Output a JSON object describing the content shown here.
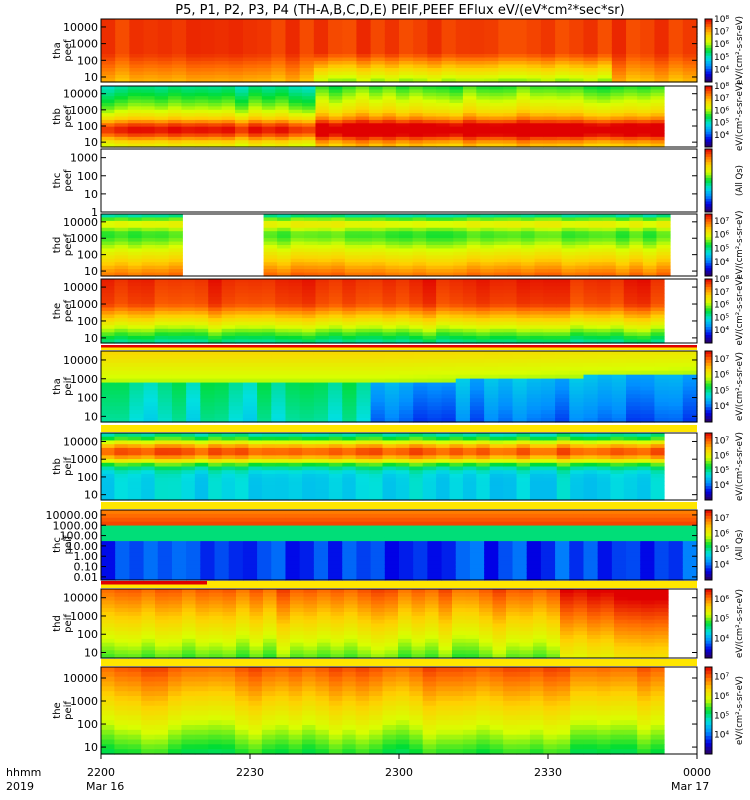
{
  "chart_data": {
    "type": "heatmap",
    "title": "P5, P1, P2, P3, P4 (TH-A,B,C,D,E) PEIF,PEEF EFlux eV/(eV*cm²*sec*sr)",
    "x_axis": {
      "row_label_1": "hhmm",
      "row_label_2": "2019",
      "ticks": [
        "2200",
        "2230",
        "2300",
        "2330",
        "0000"
      ],
      "date_labels": [
        "Mar 16",
        "Mar 17"
      ],
      "range": [
        "2019-03-16 22:00",
        "2019-03-17 00:00"
      ]
    },
    "colormap": [
      "#2b005e",
      "#0000e6",
      "#0090ff",
      "#00e0e0",
      "#00dd33",
      "#d8ff00",
      "#ffd000",
      "#ff6a00",
      "#e00000"
    ],
    "panels": [
      {
        "ylabel": [
          "tha",
          "peef"
        ],
        "yticks": [
          "10000",
          "1000",
          "100",
          "10"
        ],
        "ylim": [
          5,
          30000
        ],
        "log": true,
        "color_ticks": [
          "10⁴",
          "10⁵",
          "10⁶",
          "10⁷",
          "10⁸"
        ],
        "clim_exp": [
          3,
          8
        ],
        "unit": "eV/(cm²-s-sr-eV)"
      },
      {
        "ylabel": [
          "thb",
          "peef"
        ],
        "yticks": [
          "10000",
          "1000",
          "100",
          "10"
        ],
        "ylim": [
          5,
          30000
        ],
        "log": true,
        "color_ticks": [
          "10⁴",
          "10⁵",
          "10⁶",
          "10⁷",
          "10⁸"
        ],
        "clim_exp": [
          3,
          8
        ],
        "unit": "eV/(cm²-s-sr-eV)"
      },
      {
        "ylabel": [
          "thc",
          "peef"
        ],
        "yticks": [
          "1000",
          "100",
          "10",
          "1"
        ],
        "ylim": [
          1,
          3000
        ],
        "log": true,
        "color_ticks": [],
        "clim_exp": [
          3,
          8
        ],
        "unit": "(All Qs)"
      },
      {
        "ylabel": [
          "thd",
          "peef"
        ],
        "yticks": [
          "10000",
          "1000",
          "100",
          "10"
        ],
        "ylim": [
          5,
          30000
        ],
        "log": true,
        "color_ticks": [
          "10⁴",
          "10⁵",
          "10⁶",
          "10⁷"
        ],
        "clim_exp": [
          3,
          7.5
        ],
        "unit": "eV/(cm²-s-sr-eV)"
      },
      {
        "ylabel": [
          "the",
          "peef"
        ],
        "yticks": [
          "10000",
          "1000",
          "100",
          "10"
        ],
        "ylim": [
          5,
          30000
        ],
        "log": true,
        "color_ticks": [
          "10⁴",
          "10⁵",
          "10⁶",
          "10⁷",
          "10⁸"
        ],
        "clim_exp": [
          3,
          8
        ],
        "unit": "eV/(cm²-s-sr-eV)"
      },
      {
        "ylabel": [
          "tha",
          "peif"
        ],
        "yticks": [
          "10000",
          "1000",
          "100",
          "10"
        ],
        "ylim": [
          5,
          30000
        ],
        "log": true,
        "color_ticks": [
          "10⁴",
          "10⁵",
          "10⁶",
          "10⁷"
        ],
        "clim_exp": [
          3,
          7.5
        ],
        "unit": "eV/(cm²-s-sr-eV)"
      },
      {
        "ylabel": [
          "thb",
          "peif"
        ],
        "yticks": [
          "10000",
          "1000",
          "100",
          "10"
        ],
        "ylim": [
          5,
          30000
        ],
        "log": true,
        "color_ticks": [
          "10⁴",
          "10⁵",
          "10⁶",
          "10⁷"
        ],
        "clim_exp": [
          3,
          7.5
        ],
        "unit": "eV/(cm²-s-sr-eV)"
      },
      {
        "ylabel": [
          "thc",
          "peif"
        ],
        "yticks": [
          "10000.00",
          "1000.00",
          "100.00",
          "10.00",
          "1.00",
          "0.10",
          "0.01"
        ],
        "ylim": [
          0.005,
          30000
        ],
        "log": true,
        "color_ticks": [
          "10⁴",
          "10⁵",
          "10⁶",
          "10⁷"
        ],
        "clim_exp": [
          3,
          7.5
        ],
        "unit": "(All Qs)"
      },
      {
        "ylabel": [
          "thd",
          "peif"
        ],
        "yticks": [
          "10000",
          "1000",
          "100",
          "10"
        ],
        "ylim": [
          5,
          30000
        ],
        "log": true,
        "color_ticks": [
          "10⁴",
          "10⁵",
          "10⁶"
        ],
        "clim_exp": [
          3,
          6.5
        ],
        "unit": "eV/(cm²-s-sr-eV)"
      },
      {
        "ylabel": [
          "the",
          "peif"
        ],
        "yticks": [
          "10000",
          "1000",
          "100",
          "10"
        ],
        "ylim": [
          5,
          30000
        ],
        "log": true,
        "color_ticks": [
          "10⁴",
          "10⁵",
          "10⁶",
          "10⁷"
        ],
        "clim_exp": [
          3,
          7.5
        ],
        "unit": "eV/(cm²-s-sr-eV)"
      }
    ]
  }
}
